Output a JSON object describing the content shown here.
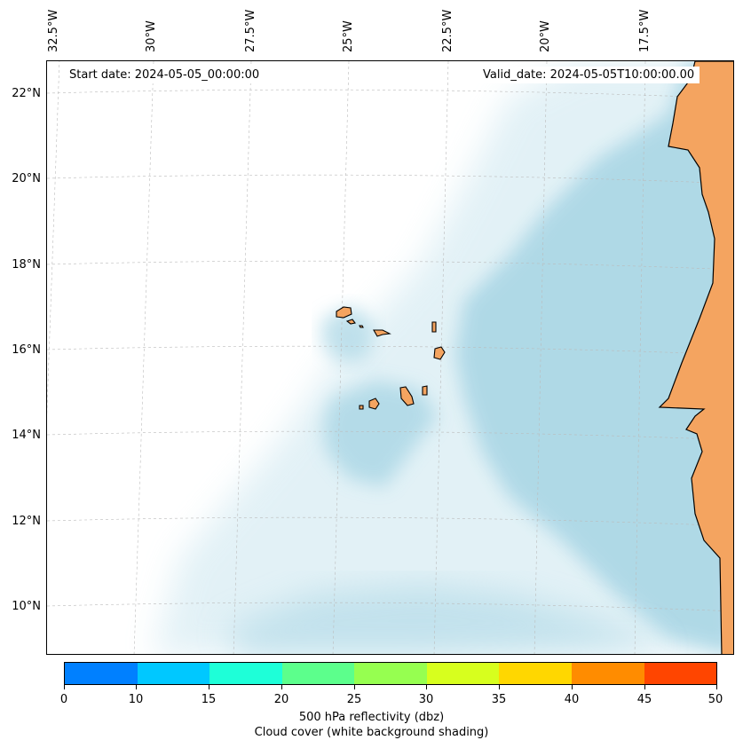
{
  "header": {
    "start_date": "Start date: 2024-05-05_00:00:00",
    "valid_date": "Valid_date: 2024-05-05T10:00:00.00"
  },
  "axes": {
    "lon_labels": [
      "32.5°W",
      "30°W",
      "27.5°W",
      "25°W",
      "22.5°W",
      "20°W",
      "17.5°W"
    ],
    "lat_labels": [
      "22°N",
      "20°N",
      "18°N",
      "16°N",
      "14°N",
      "12°N",
      "10°N"
    ],
    "grid": true
  },
  "colors": {
    "land": "#f4a460",
    "cloud": "#add8e6",
    "coast": "#000000"
  },
  "colorbar": {
    "ticks": [
      "0",
      "10",
      "15",
      "20",
      "25",
      "30",
      "35",
      "40",
      "45",
      "50"
    ],
    "colors": [
      "#0080ff",
      "#00c8ff",
      "#1effd8",
      "#5cff8c",
      "#96ff50",
      "#d7ff1e",
      "#ffd700",
      "#ff8c00",
      "#ff4500"
    ],
    "label": "500 hPa reflectivity (dbz)",
    "sublabel": "Cloud cover (white background shading)"
  }
}
